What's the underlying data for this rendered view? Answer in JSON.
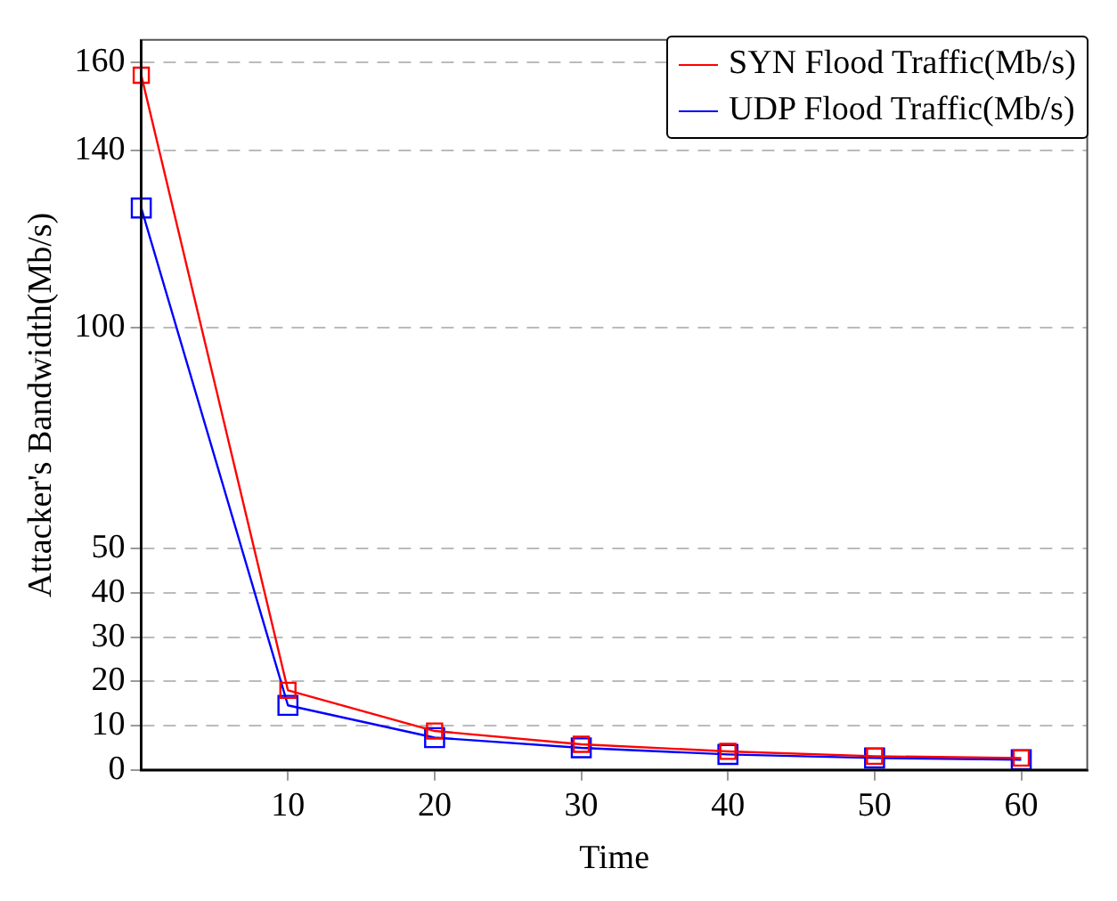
{
  "chart_data": {
    "type": "line",
    "xlabel": "Time",
    "ylabel": "Attacker's Bandwidth(Mb/s)",
    "x": [
      0,
      10,
      20,
      30,
      40,
      50,
      60
    ],
    "xlim": [
      0,
      64.5
    ],
    "xticks": [
      10,
      20,
      30,
      40,
      50,
      60
    ],
    "ylim": [
      0,
      165
    ],
    "yticks": [
      0,
      10,
      20,
      30,
      40,
      50,
      100,
      140,
      160
    ],
    "grid": "y",
    "legend": "top right",
    "marker": "square",
    "line_style": "solid",
    "series": [
      {
        "name": "SYN Flood Traffic(Mb/s)",
        "color": "#ff0000",
        "values": [
          157,
          18,
          8.8,
          5.8,
          4.2,
          3.1,
          2.7
        ]
      },
      {
        "name": "UDP Flood Traffic(Mb/s)",
        "color": "#0000ff",
        "values": [
          127,
          14.6,
          7.3,
          5,
          3.5,
          2.7,
          2.3
        ]
      }
    ]
  }
}
